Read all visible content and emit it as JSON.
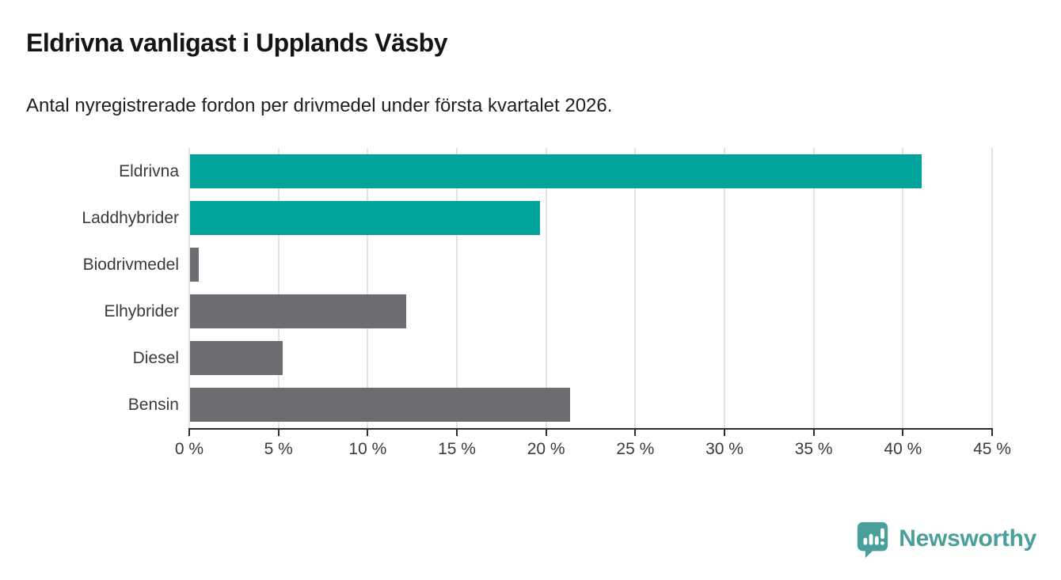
{
  "header": {
    "title": "Eldrivna vanligast i Upplands Väsby",
    "subtitle": "Antal nyregistrerade fordon per drivmedel under första kvartalet 2026."
  },
  "chart_data": {
    "type": "bar",
    "orientation": "horizontal",
    "title": "Eldrivna vanligast i Upplands Väsby",
    "subtitle": "Antal nyregistrerade fordon per drivmedel under första kvartalet 2026.",
    "categories": [
      "Eldrivna",
      "Laddhybrider",
      "Biodrivmedel",
      "Elhybrider",
      "Diesel",
      "Bensin"
    ],
    "values": [
      41.0,
      19.6,
      0.5,
      12.1,
      5.2,
      21.3
    ],
    "bar_colors": [
      "#00a49b",
      "#00a49b",
      "#6d6d71",
      "#6d6d71",
      "#6d6d71",
      "#6d6d71"
    ],
    "xlabel": "",
    "ylabel": "",
    "xlim": [
      0,
      45
    ],
    "x_ticks": [
      0,
      5,
      10,
      15,
      20,
      25,
      30,
      35,
      40,
      45
    ],
    "x_tick_labels": [
      "0 %",
      "5 %",
      "10 %",
      "15 %",
      "20 %",
      "25 %",
      "30 %",
      "35 %",
      "40 %",
      "45 %"
    ],
    "grid": true,
    "legend": false
  },
  "colors": {
    "accent_teal": "#00a49b",
    "bar_gray": "#6d6d71",
    "gridline": "#e3e3e3",
    "axis": "#2e2e2e",
    "logo_teal": "#49a09a"
  },
  "branding": {
    "logo_text": "Newsworthy",
    "logo_icon": "speech-bubble-bar-chart-icon"
  }
}
